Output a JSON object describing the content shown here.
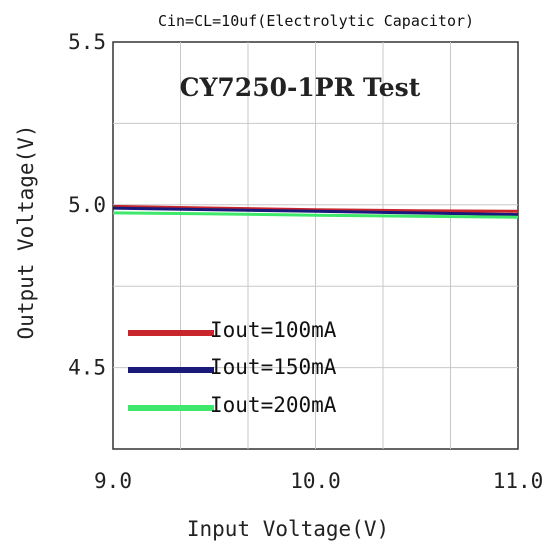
{
  "chart_data": {
    "type": "line",
    "subtitle": "Cin=CL=10uf(Electrolytic Capacitor)",
    "title": "CY7250-1PR Test",
    "xlabel": "Input Voltage(V)",
    "ylabel": "Output Voltage(V)",
    "xlim": [
      9.0,
      11.0
    ],
    "ylim": [
      4.25,
      5.5
    ],
    "x_ticks": [
      9.0,
      10.0,
      11.0
    ],
    "x_tick_labels": [
      "9.0",
      "10.0",
      "11.0"
    ],
    "y_ticks": [
      4.5,
      5.0,
      5.5
    ],
    "y_tick_labels": [
      "4.5",
      "5.0",
      "5.5"
    ],
    "grid": true,
    "legend": "bottom-left",
    "series": [
      {
        "name": "Iout=100mA",
        "color": "#c8262c",
        "x": [
          9.0,
          9.5,
          10.0,
          10.5,
          11.0
        ],
        "y": [
          4.995,
          4.99,
          4.985,
          4.982,
          4.98
        ]
      },
      {
        "name": "Iout=150mA",
        "color": "#1a1a7a",
        "x": [
          9.0,
          9.5,
          10.0,
          10.5,
          11.0
        ],
        "y": [
          4.99,
          4.985,
          4.98,
          4.975,
          4.97
        ]
      },
      {
        "name": "Iout=200mA",
        "color": "#3ee86a",
        "x": [
          9.0,
          9.5,
          10.0,
          10.5,
          11.0
        ],
        "y": [
          4.975,
          4.972,
          4.968,
          4.965,
          4.962
        ]
      }
    ]
  }
}
